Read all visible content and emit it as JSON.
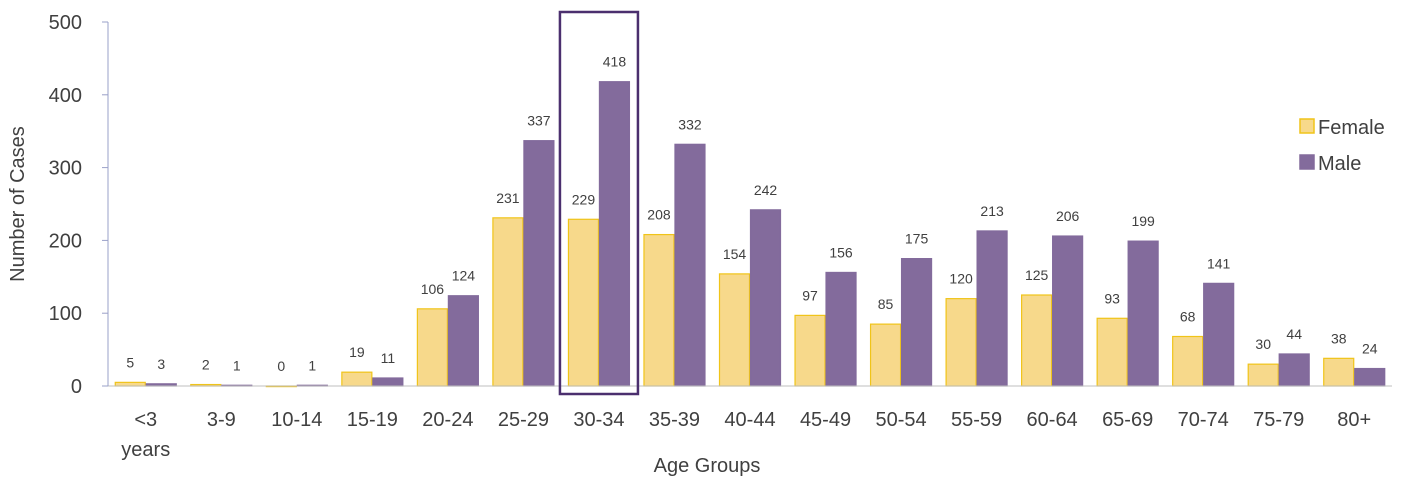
{
  "chart_data": {
    "type": "bar",
    "categories": [
      "<3 years",
      "3-9",
      "10-14",
      "15-19",
      "20-24",
      "25-29",
      "30-34",
      "35-39",
      "40-44",
      "45-49",
      "50-54",
      "55-59",
      "60-64",
      "65-69",
      "70-74",
      "75-79",
      "80+"
    ],
    "category_lines": [
      [
        "<3",
        "years"
      ],
      [
        "3-9"
      ],
      [
        "10-14"
      ],
      [
        "15-19"
      ],
      [
        "20-24"
      ],
      [
        "25-29"
      ],
      [
        "30-34"
      ],
      [
        "35-39"
      ],
      [
        "40-44"
      ],
      [
        "45-49"
      ],
      [
        "50-54"
      ],
      [
        "55-59"
      ],
      [
        "60-64"
      ],
      [
        "65-69"
      ],
      [
        "70-74"
      ],
      [
        "75-79"
      ],
      [
        "80+"
      ]
    ],
    "series": [
      {
        "name": "Female",
        "values": [
          5,
          2,
          0,
          19,
          106,
          231,
          229,
          208,
          154,
          97,
          85,
          120,
          125,
          93,
          68,
          30,
          38
        ],
        "fill": "#f7d98b",
        "stroke": "#f0c419"
      },
      {
        "name": "Male",
        "values": [
          3,
          1,
          1,
          11,
          124,
          337,
          418,
          332,
          242,
          156,
          175,
          213,
          206,
          199,
          141,
          44,
          24
        ],
        "fill": "#836b9c",
        "stroke": "#836b9c"
      }
    ],
    "xlabel": "Age Groups",
    "ylabel": "Number of Cases",
    "ylim": [
      0,
      500
    ],
    "yticks": [
      0,
      100,
      200,
      300,
      400,
      500
    ],
    "grid": false,
    "legend_position": "right",
    "highlighted_category": "30-34",
    "highlight_color": "#4b2f6e"
  }
}
